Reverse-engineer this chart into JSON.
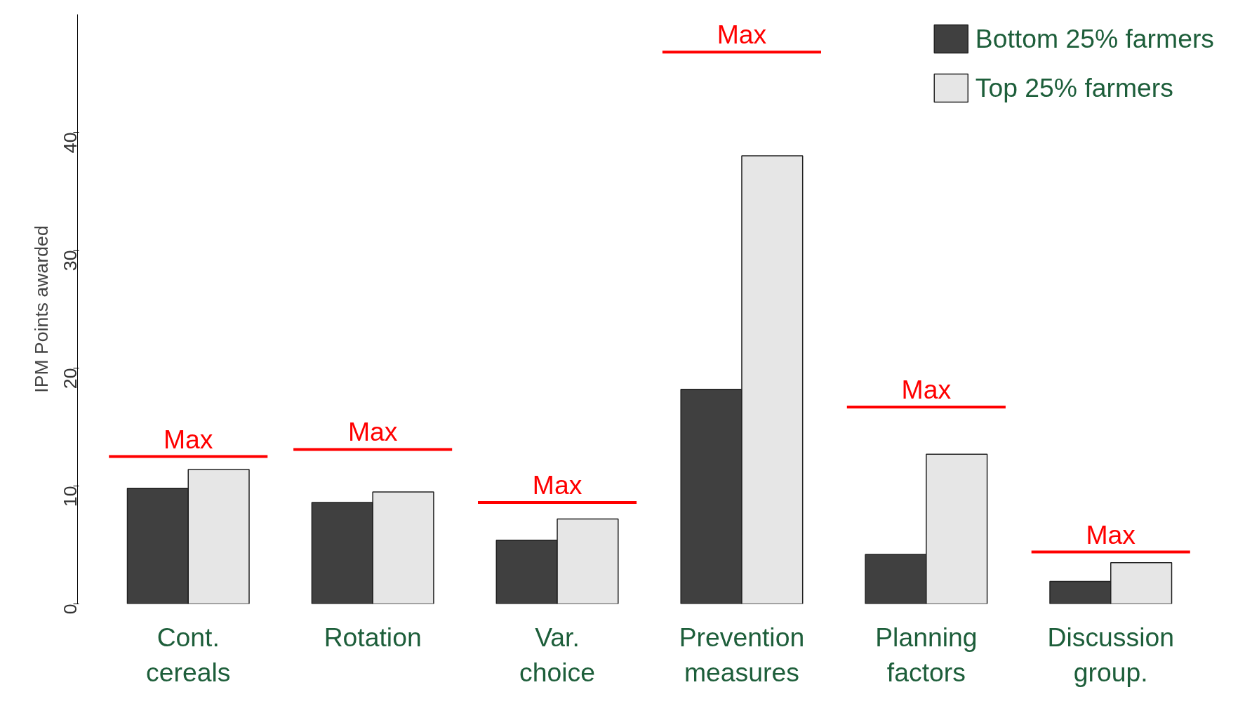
{
  "chart_data": {
    "type": "bar",
    "ylabel": "IPM Points awarded",
    "categories": [
      "Cont. cereals",
      "Rotation",
      "Var. choice",
      "Prevention measures",
      "Planning factors",
      "Discussion group."
    ],
    "series": [
      {
        "name": "Bottom 25% farmers",
        "color": "#404040",
        "values": [
          9.8,
          8.6,
          5.4,
          18.2,
          4.2,
          1.9
        ]
      },
      {
        "name": "Top 25% farmers",
        "color": "#e6e6e6",
        "values": [
          11.4,
          9.5,
          7.2,
          38.0,
          12.7,
          3.5
        ]
      }
    ],
    "ylim": [
      0,
      50
    ],
    "yticks": [
      0,
      10,
      20,
      30,
      40
    ],
    "grid": false,
    "legend": "top right",
    "ref_lines": [
      {
        "axis": "y",
        "value": 12.5,
        "label": "Max",
        "color": "#ff0000"
      },
      {
        "axis": "y",
        "value": 13.1,
        "label": "Max",
        "color": "#ff0000"
      },
      {
        "axis": "y",
        "value": 8.6,
        "label": "Max",
        "color": "#ff0000"
      },
      {
        "axis": "y",
        "value": 46.8,
        "label": "Max",
        "color": "#ff0000"
      },
      {
        "axis": "y",
        "value": 16.7,
        "label": "Max",
        "color": "#ff0000"
      },
      {
        "axis": "y",
        "value": 4.4,
        "label": "Max",
        "color": "#ff0000"
      }
    ]
  }
}
